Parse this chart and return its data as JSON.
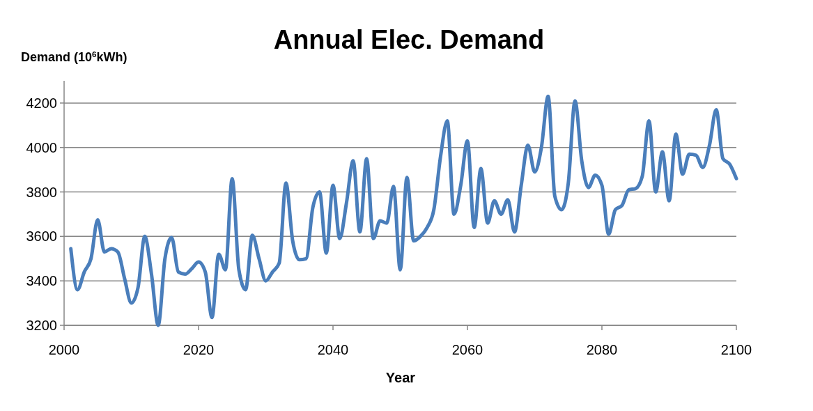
{
  "chart_data": {
    "type": "line",
    "title": "Annual Elec. Demand",
    "ylabel": "Demand (10$^{6}$kWh)",
    "xlabel": "Year",
    "x": [
      2001,
      2002,
      2003,
      2004,
      2005,
      2006,
      2007,
      2008,
      2009,
      2010,
      2011,
      2012,
      2013,
      2014,
      2015,
      2016,
      2017,
      2018,
      2019,
      2020,
      2021,
      2022,
      2023,
      2024,
      2025,
      2026,
      2027,
      2028,
      2029,
      2030,
      2031,
      2032,
      2033,
      2034,
      2035,
      2036,
      2037,
      2038,
      2039,
      2040,
      2041,
      2042,
      2043,
      2044,
      2045,
      2046,
      2047,
      2048,
      2049,
      2050,
      2051,
      2052,
      2053,
      2054,
      2055,
      2056,
      2057,
      2058,
      2059,
      2060,
      2061,
      2062,
      2063,
      2064,
      2065,
      2066,
      2067,
      2068,
      2069,
      2070,
      2071,
      2072,
      2073,
      2074,
      2075,
      2076,
      2077,
      2078,
      2079,
      2080,
      2081,
      2082,
      2083,
      2084,
      2085,
      2086,
      2087,
      2088,
      2089,
      2090,
      2091,
      2092,
      2093,
      2094,
      2095,
      2096,
      2097,
      2098,
      2099,
      2100
    ],
    "series": [
      {
        "color": "#4a7ebb",
        "values": [
          3545,
          3360,
          3440,
          3500,
          3675,
          3530,
          3545,
          3530,
          3410,
          3300,
          3370,
          3600,
          3430,
          3200,
          3500,
          3595,
          3440,
          3430,
          3455,
          3485,
          3440,
          3235,
          3520,
          3450,
          3860,
          3450,
          3360,
          3605,
          3500,
          3400,
          3440,
          3480,
          3840,
          3580,
          3495,
          3500,
          3730,
          3800,
          3525,
          3830,
          3590,
          3750,
          3940,
          3620,
          3950,
          3590,
          3670,
          3660,
          3825,
          3450,
          3865,
          3580,
          3600,
          3640,
          3720,
          3960,
          4120,
          3700,
          3830,
          4030,
          3640,
          3905,
          3660,
          3760,
          3700,
          3765,
          3620,
          3830,
          4010,
          3890,
          4000,
          4230,
          3780,
          3720,
          3840,
          4210,
          3940,
          3820,
          3875,
          3830,
          3610,
          3720,
          3740,
          3810,
          3815,
          3870,
          4120,
          3800,
          3980,
          3760,
          4060,
          3880,
          3970,
          3965,
          3910,
          4010,
          4170,
          3950,
          3925,
          3860
        ]
      }
    ],
    "xlim": [
      2000,
      2100
    ],
    "xticks": [
      2000,
      2020,
      2040,
      2060,
      2080,
      2100
    ],
    "ylim": [
      3200,
      4300
    ],
    "yticks": [
      3200,
      3400,
      3600,
      3800,
      4000,
      4200
    ],
    "grid": "y",
    "marker": "none",
    "line_style": "solid"
  }
}
